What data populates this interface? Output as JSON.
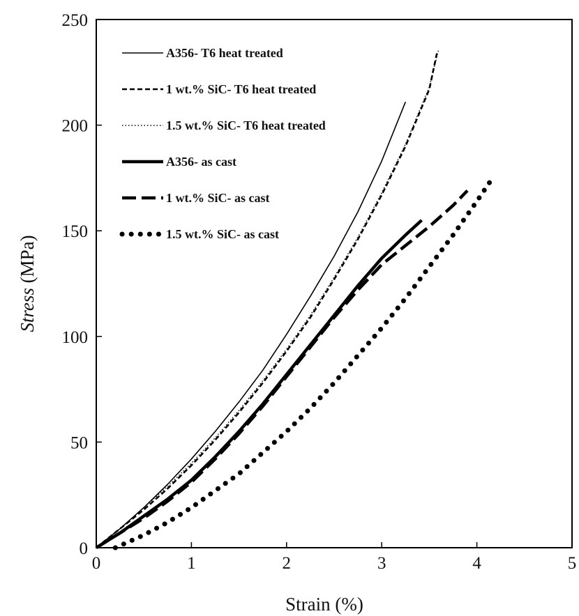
{
  "chart_data": {
    "type": "line",
    "xlabel": "Strain (%)",
    "ylabel_italic": "Stress",
    "ylabel_rest": " (MPa)",
    "xlim": [
      0,
      5
    ],
    "ylim": [
      0,
      250
    ],
    "x_ticks": [
      "0",
      "1",
      "2",
      "3",
      "4",
      "5"
    ],
    "y_ticks": [
      "0",
      "50",
      "100",
      "150",
      "200",
      "250"
    ],
    "grid": false,
    "legend_position": "top-left",
    "series": [
      {
        "name": "A356- T6 heat treated",
        "style": "thin-solid",
        "x": [
          0,
          0.25,
          0.5,
          0.75,
          1.0,
          1.25,
          1.5,
          1.75,
          2.0,
          2.25,
          2.5,
          2.75,
          3.0,
          3.25
        ],
        "y": [
          0,
          9,
          19,
          30,
          42,
          55,
          69,
          84,
          101,
          119,
          138,
          159,
          183,
          211
        ]
      },
      {
        "name": "1 wt.% SiC- T6 heat treated",
        "style": "short-dash",
        "x": [
          0,
          0.25,
          0.5,
          0.75,
          1.0,
          1.25,
          1.5,
          1.75,
          2.0,
          2.25,
          2.5,
          2.75,
          3.0,
          3.25,
          3.5,
          3.58
        ],
        "y": [
          0,
          9,
          18,
          28,
          39,
          51,
          64,
          78,
          93,
          109,
          127,
          146,
          167,
          190,
          217,
          234
        ]
      },
      {
        "name": "1.5 wt.% SiC- T6 heat treated",
        "style": "dotted-thin",
        "x": [
          0,
          0.25,
          0.5,
          0.75,
          1.0,
          1.25,
          1.5,
          1.75,
          2.0,
          2.25,
          2.5,
          2.75,
          3.0,
          3.25,
          3.5,
          3.6
        ],
        "y": [
          0,
          9,
          19,
          29,
          40,
          52,
          65,
          79,
          94,
          110,
          128,
          147,
          168,
          191,
          218,
          236
        ]
      },
      {
        "name": "A356- as cast",
        "style": "thick-solid",
        "x": [
          0,
          0.25,
          0.5,
          0.75,
          1.0,
          1.25,
          1.5,
          1.75,
          2.0,
          2.25,
          2.5,
          2.75,
          3.0,
          3.25,
          3.42
        ],
        "y": [
          0,
          7,
          15,
          23,
          32,
          43,
          55,
          68,
          82,
          96,
          110,
          124,
          137,
          148,
          155
        ]
      },
      {
        "name": "1 wt.% SiC- as cast",
        "style": "long-dash",
        "x": [
          0,
          0.25,
          0.5,
          0.75,
          1.0,
          1.25,
          1.5,
          1.75,
          2.0,
          2.25,
          2.5,
          2.75,
          3.0,
          3.25,
          3.5,
          3.75,
          3.9
        ],
        "y": [
          0,
          7,
          14,
          22,
          31,
          42,
          54,
          67,
          81,
          95,
          109,
          122,
          134,
          143,
          152,
          162,
          169
        ]
      },
      {
        "name": "1.5 wt.% SiC- as cast",
        "style": "big-dots",
        "x": [
          0.2,
          0.5,
          0.75,
          1.0,
          1.25,
          1.5,
          1.75,
          2.0,
          2.25,
          2.5,
          2.75,
          3.0,
          3.25,
          3.5,
          3.75,
          4.0,
          4.15
        ],
        "y": [
          0,
          6,
          12,
          19,
          27,
          35,
          45,
          55,
          66,
          78,
          91,
          104,
          118,
          133,
          148,
          164,
          174
        ]
      }
    ]
  }
}
